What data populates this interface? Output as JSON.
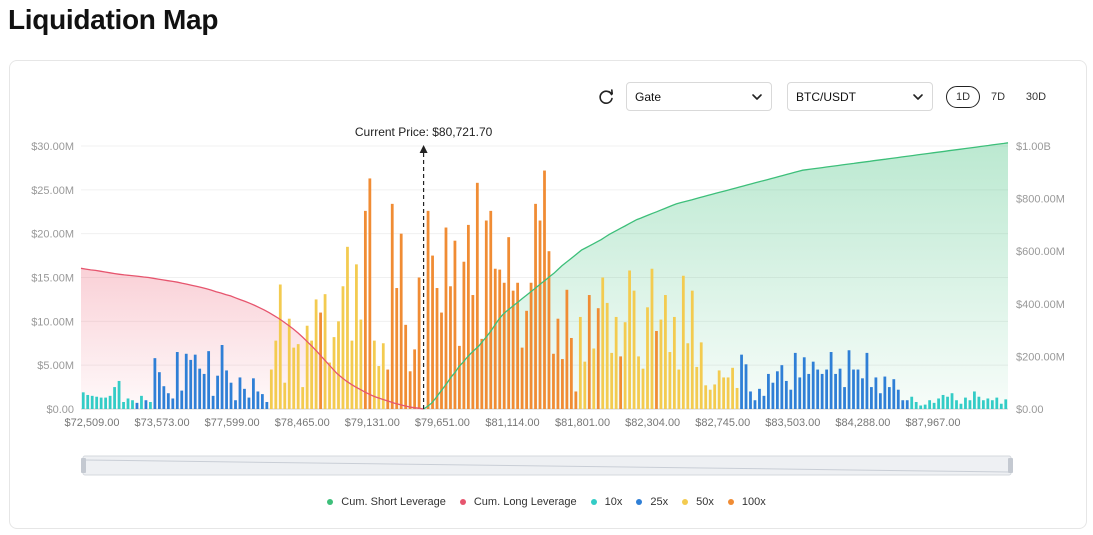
{
  "page": {
    "title": "Liquidation Map"
  },
  "controls": {
    "exchange": "Gate",
    "pair": "BTC/USDT",
    "ranges": [
      {
        "label": "1D",
        "active": true
      },
      {
        "label": "7D",
        "active": false
      },
      {
        "label": "30D",
        "active": false
      }
    ]
  },
  "chart_data": {
    "type": "bar",
    "title": "",
    "xlabel": "",
    "ylabel": "",
    "annotation": "Current Price: $80,721.70",
    "current_price_index": 76,
    "left_axis": {
      "ticks": [
        "$0.00",
        "$5.00M",
        "$10.00M",
        "$15.00M",
        "$20.00M",
        "$25.00M",
        "$30.00M"
      ],
      "ylim": [
        0,
        30
      ]
    },
    "right_axis": {
      "ticks": [
        "$0.00",
        "$200.00M",
        "$400.00M",
        "$600.00M",
        "$800.00M",
        "$1.00B"
      ],
      "ylim": [
        0,
        1000
      ]
    },
    "x_tick_labels": [
      "$72,509.00",
      "$73,573.00",
      "$77,599.00",
      "$78,465.00",
      "$79,131.00",
      "$79,651.00",
      "$81,114.00",
      "$81,801.00",
      "$82,304.00",
      "$82,745.00",
      "$83,503.00",
      "$84,288.00",
      "$87,967.00"
    ],
    "legend": [
      {
        "name": "Cum. Short Leverage",
        "color": "#3dbf7a"
      },
      {
        "name": "Cum. Long Leverage",
        "color": "#e6556e"
      },
      {
        "name": "10x",
        "color": "#33ccc6"
      },
      {
        "name": "25x",
        "color": "#2f7fd6"
      },
      {
        "name": "50x",
        "color": "#f3cb50"
      },
      {
        "name": "100x",
        "color": "#f08c34"
      }
    ],
    "bars_M": [
      1.9,
      1.6,
      1.5,
      1.4,
      1.3,
      1.3,
      1.5,
      2.5,
      3.2,
      0.8,
      1.2,
      1.0,
      0.7,
      1.5,
      1.0,
      0.8,
      5.8,
      4.2,
      2.6,
      1.8,
      1.2,
      6.5,
      2.1,
      6.3,
      5.6,
      6.2,
      4.6,
      4.0,
      6.6,
      1.5,
      3.8,
      7.3,
      4.4,
      3.0,
      1.0,
      3.6,
      2.3,
      1.3,
      3.5,
      2.0,
      1.7,
      0.8,
      4.5,
      7.8,
      14.2,
      3.0,
      10.3,
      7.0,
      7.4,
      2.5,
      9.5,
      7.8,
      12.5,
      11.0,
      13.1,
      5.3,
      8.2,
      10.0,
      14.0,
      18.5,
      7.8,
      16.5,
      10.2,
      22.6,
      26.3,
      7.8,
      4.9,
      7.5,
      4.5,
      23.4,
      13.8,
      20.0,
      9.6,
      4.3,
      6.8,
      15.0,
      0,
      22.6,
      17.5,
      13.8,
      11.0,
      20.7,
      14.0,
      19.2,
      7.2,
      16.8,
      21.0,
      13.0,
      25.8,
      8.0,
      21.5,
      22.6,
      16.0,
      15.9,
      14.4,
      19.6,
      13.5,
      14.4,
      7.0,
      11.2,
      14.4,
      23.4,
      21.5,
      27.2,
      18.0,
      6.3,
      10.3,
      5.7,
      13.6,
      8.1,
      2.0,
      10.5,
      5.4,
      13.0,
      6.9,
      11.5,
      15.0,
      12.1,
      6.4,
      10.5,
      6.0,
      9.9,
      15.8,
      13.5,
      6.0,
      4.6,
      11.6,
      16.0,
      8.9,
      10.2,
      13.0,
      6.5,
      10.5,
      4.5,
      15.2,
      7.5,
      13.5,
      4.8,
      7.6,
      2.7,
      2.2,
      2.8,
      4.4,
      3.6,
      3.6,
      4.7,
      2.4,
      6.2,
      5.1,
      2.0,
      1.0,
      2.3,
      1.5,
      4.0,
      3.0,
      4.3,
      5.0,
      3.2,
      2.2,
      6.4,
      3.6,
      5.9,
      4.0,
      5.4,
      4.5,
      4.0,
      4.5,
      6.5,
      4.0,
      4.6,
      2.5,
      6.7,
      4.5,
      4.5,
      3.5,
      6.4,
      2.5,
      3.6,
      1.8,
      3.7,
      2.5,
      3.4,
      2.2,
      1.0,
      1.0,
      1.4,
      0.8,
      0.4,
      0.5,
      1.0,
      0.7,
      1.2,
      1.6,
      1.4,
      1.8,
      1.0,
      0.6,
      1.3,
      1.0,
      2.0,
      1.4,
      1.0,
      1.2,
      1.0,
      1.3,
      0.6,
      1.1
    ],
    "bar_leverage": [
      "10x",
      "10x",
      "10x",
      "10x",
      "10x",
      "10x",
      "10x",
      "10x",
      "10x",
      "10x",
      "10x",
      "10x",
      "25x",
      "10x",
      "25x",
      "10x",
      "25x",
      "25x",
      "25x",
      "25x",
      "25x",
      "25x",
      "25x",
      "25x",
      "25x",
      "25x",
      "25x",
      "25x",
      "25x",
      "25x",
      "25x",
      "25x",
      "25x",
      "25x",
      "25x",
      "25x",
      "25x",
      "25x",
      "25x",
      "25x",
      "25x",
      "25x",
      "50x",
      "50x",
      "50x",
      "50x",
      "50x",
      "50x",
      "50x",
      "50x",
      "50x",
      "50x",
      "50x",
      "100x",
      "50x",
      "50x",
      "50x",
      "50x",
      "50x",
      "50x",
      "50x",
      "50x",
      "50x",
      "100x",
      "100x",
      "50x",
      "50x",
      "50x",
      "100x",
      "100x",
      "100x",
      "100x",
      "100x",
      "100x",
      "100x",
      "100x",
      "100x",
      "100x",
      "100x",
      "100x",
      "100x",
      "100x",
      "100x",
      "100x",
      "100x",
      "100x",
      "100x",
      "100x",
      "100x",
      "100x",
      "100x",
      "100x",
      "100x",
      "100x",
      "100x",
      "100x",
      "100x",
      "100x",
      "100x",
      "100x",
      "100x",
      "100x",
      "100x",
      "100x",
      "100x",
      "100x",
      "100x",
      "100x",
      "100x",
      "100x",
      "100x",
      "50x",
      "50x",
      "100x",
      "50x",
      "100x",
      "50x",
      "50x",
      "50x",
      "50x",
      "100x",
      "50x",
      "50x",
      "50x",
      "50x",
      "50x",
      "50x",
      "50x",
      "100x",
      "50x",
      "50x",
      "50x",
      "50x",
      "50x",
      "50x",
      "50x",
      "50x",
      "50x",
      "50x",
      "50x",
      "50x",
      "50x",
      "50x",
      "50x",
      "50x",
      "50x",
      "50x",
      "25x",
      "25x",
      "25x",
      "25x",
      "25x",
      "25x",
      "25x",
      "25x",
      "25x",
      "25x",
      "25x",
      "25x",
      "25x",
      "25x",
      "25x",
      "25x",
      "25x",
      "25x",
      "25x",
      "25x",
      "25x",
      "25x",
      "25x",
      "25x",
      "25x",
      "25x",
      "25x",
      "25x",
      "25x",
      "25x",
      "25x",
      "25x",
      "25x",
      "25x",
      "25x",
      "25x",
      "25x",
      "25x",
      "10x",
      "10x",
      "10x",
      "10x",
      "10x",
      "10x",
      "10x",
      "10x",
      "10x",
      "10x",
      "10x",
      "10x",
      "10x",
      "10x",
      "10x",
      "10x",
      "10x",
      "10x",
      "10x",
      "10x",
      "10x",
      "10x",
      "10x",
      "10x",
      "10x",
      "10x",
      "10x"
    ],
    "series": [
      {
        "name": "Cum. Long Leverage",
        "values": [
          535,
          532,
          529,
          527,
          524,
          521,
          518,
          515,
          512,
          510,
          508,
          506,
          504,
          502,
          500,
          497,
          494,
          491,
          488,
          485,
          482,
          478,
          474,
          470,
          466,
          462,
          457,
          452,
          446,
          441,
          435,
          430,
          423,
          416,
          409,
          402,
          394,
          385,
          376,
          366,
          355,
          344,
          331,
          318,
          304,
          289,
          272,
          254,
          236,
          217,
          196,
          176,
          156,
          136,
          120,
          106,
          94,
          83,
          73,
          63,
          54,
          46,
          40,
          34,
          28,
          22,
          17,
          12,
          8,
          5,
          3,
          0
        ]
      },
      {
        "name": "Cum. Short Leverage",
        "values": [
          0,
          10,
          22,
          40,
          60,
          80,
          100,
          122,
          140,
          162,
          178,
          196,
          212,
          226,
          240,
          258,
          276,
          296,
          318,
          340,
          358,
          372,
          384,
          396,
          408,
          420,
          432,
          444,
          456,
          468,
          480,
          492,
          504,
          516,
          530,
          544,
          556,
          568,
          580,
          592,
          604,
          612,
          620,
          628,
          636,
          644,
          654,
          664,
          672,
          680,
          688,
          696,
          704,
          712,
          720,
          726,
          732,
          738,
          744,
          750,
          756,
          762,
          768,
          774,
          780,
          784,
          788,
          792,
          796,
          800,
          804,
          808,
          812,
          816,
          820,
          824,
          828,
          832,
          836,
          840,
          844,
          848,
          852,
          856,
          860,
          864,
          868,
          872,
          876,
          880,
          884,
          888,
          892,
          896,
          900,
          904,
          908,
          910,
          912,
          914,
          916,
          918,
          920,
          922,
          924,
          926,
          928,
          930,
          932,
          934,
          936,
          938,
          940,
          942,
          944,
          946,
          948,
          950,
          952,
          954,
          956,
          958,
          960,
          962,
          964,
          966,
          968,
          970,
          972,
          974,
          976,
          978,
          980,
          982,
          984,
          986,
          988,
          990,
          992,
          994,
          996,
          998,
          1000,
          1002,
          1004,
          1006,
          1008,
          1010,
          1012
        ]
      }
    ]
  }
}
